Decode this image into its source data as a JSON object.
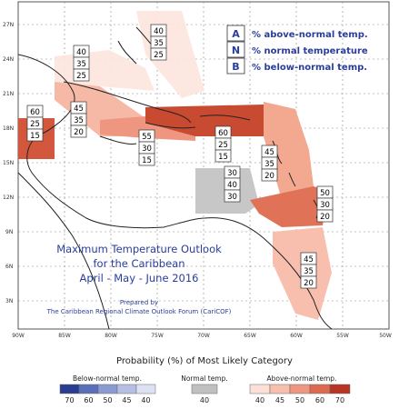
{
  "map": {
    "lat_labels": [
      "27N",
      "24N",
      "21N",
      "18N",
      "15N",
      "12N",
      "9N",
      "6N",
      "3N"
    ],
    "lon_labels": [
      "90W",
      "85W",
      "80W",
      "75W",
      "70W",
      "65W",
      "60W",
      "55W",
      "50W"
    ],
    "title_lines": [
      "Maximum Temperature Outlook",
      "for the Caribbean",
      "April - May - June 2016"
    ],
    "prepared_lines": [
      "Prepared by",
      "The Caribbean Regional Climate Outlook Forum (CariCOF)"
    ],
    "key": [
      {
        "letter": "A",
        "text": "% above-normal temp."
      },
      {
        "letter": "N",
        "text": "% normal temperature"
      },
      {
        "letter": "B",
        "text": "% below-normal temp."
      }
    ],
    "probability_boxes": [
      {
        "values": [
          "40",
          "35",
          "25"
        ]
      },
      {
        "values": [
          "40",
          "35",
          "25"
        ]
      },
      {
        "values": [
          "60",
          "25",
          "15"
        ]
      },
      {
        "values": [
          "45",
          "35",
          "20"
        ]
      },
      {
        "values": [
          "55",
          "30",
          "15"
        ]
      },
      {
        "values": [
          "60",
          "25",
          "15"
        ]
      },
      {
        "values": [
          "45",
          "35",
          "20"
        ]
      },
      {
        "values": [
          "30",
          "40",
          "30"
        ]
      },
      {
        "values": [
          "50",
          "30",
          "20"
        ]
      },
      {
        "values": [
          "45",
          "35",
          "20"
        ]
      }
    ]
  },
  "legend": {
    "heading": "Probability (%) of Most Likely Category",
    "below_label": "Below-normal temp.",
    "normal_label": "Normal temp.",
    "above_label": "Above-normal temp.",
    "below_values": [
      "70",
      "60",
      "50",
      "45",
      "40"
    ],
    "normal_values": [
      "40"
    ],
    "above_values": [
      "40",
      "45",
      "50",
      "60",
      "70"
    ],
    "below_colors": [
      "#2b3d8f",
      "#5a6fb8",
      "#8b9bd1",
      "#b4bfe3",
      "#dde2f3"
    ],
    "normal_color": "#c0c0c0",
    "above_colors": [
      "#fce0d8",
      "#f8bfae",
      "#ee9680",
      "#dd6a50",
      "#b73522"
    ]
  }
}
